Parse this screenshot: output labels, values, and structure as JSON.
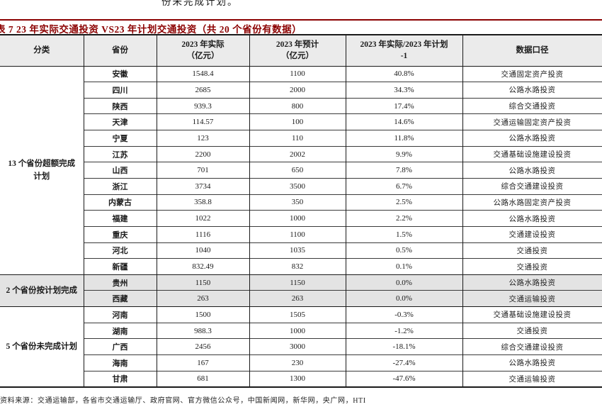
{
  "page": {
    "top_partial_text": "份未完成计划。",
    "title": "表 7 23 年实际交通投资 VS23 年计划交通投资（共 20 个省份有数据）",
    "source": "资料来源：交通运输部，各省市交通运输厅、政府官网、官方微信公众号，中国新闻网，新华网，央广网，HTI"
  },
  "colors": {
    "title_accent": "#8b0000",
    "header_bg": "#ebebeb",
    "shaded_row_bg": "#e3e3e3",
    "border": "#1a1a1a"
  },
  "table": {
    "headers": [
      "分类",
      "省份",
      "2023 年实际\n（亿元）",
      "2023 年预计\n（亿元）",
      "2023 年实际/2023 年计划\n-1",
      "数据口径"
    ],
    "groups": [
      {
        "category": "13 个省份超额完成计划",
        "shaded": false,
        "rows": [
          {
            "province": "安徽",
            "actual_2023": "1548.4",
            "planned_2023": "1100",
            "ratio": "40.8%",
            "caliber": "交通固定资产投资"
          },
          {
            "province": "四川",
            "actual_2023": "2685",
            "planned_2023": "2000",
            "ratio": "34.3%",
            "caliber": "公路水路投资"
          },
          {
            "province": "陕西",
            "actual_2023": "939.3",
            "planned_2023": "800",
            "ratio": "17.4%",
            "caliber": "综合交通投资"
          },
          {
            "province": "天津",
            "actual_2023": "114.57",
            "planned_2023": "100",
            "ratio": "14.6%",
            "caliber": "交通运输固定资产投资"
          },
          {
            "province": "宁夏",
            "actual_2023": "123",
            "planned_2023": "110",
            "ratio": "11.8%",
            "caliber": "公路水路投资"
          },
          {
            "province": "江苏",
            "actual_2023": "2200",
            "planned_2023": "2002",
            "ratio": "9.9%",
            "caliber": "交通基础设施建设投资"
          },
          {
            "province": "山西",
            "actual_2023": "701",
            "planned_2023": "650",
            "ratio": "7.8%",
            "caliber": "公路水路投资"
          },
          {
            "province": "浙江",
            "actual_2023": "3734",
            "planned_2023": "3500",
            "ratio": "6.7%",
            "caliber": "综合交通建设投资"
          },
          {
            "province": "内蒙古",
            "actual_2023": "358.8",
            "planned_2023": "350",
            "ratio": "2.5%",
            "caliber": "公路水路固定资产投资"
          },
          {
            "province": "福建",
            "actual_2023": "1022",
            "planned_2023": "1000",
            "ratio": "2.2%",
            "caliber": "公路水路投资"
          },
          {
            "province": "重庆",
            "actual_2023": "1116",
            "planned_2023": "1100",
            "ratio": "1.5%",
            "caliber": "交通建设投资"
          },
          {
            "province": "河北",
            "actual_2023": "1040",
            "planned_2023": "1035",
            "ratio": "0.5%",
            "caliber": "交通投资"
          },
          {
            "province": "新疆",
            "actual_2023": "832.49",
            "planned_2023": "832",
            "ratio": "0.1%",
            "caliber": "交通投资"
          }
        ]
      },
      {
        "category": "2 个省份按计划完成",
        "shaded": true,
        "rows": [
          {
            "province": "贵州",
            "actual_2023": "1150",
            "planned_2023": "1150",
            "ratio": "0.0%",
            "caliber": "公路水路投资"
          },
          {
            "province": "西藏",
            "actual_2023": "263",
            "planned_2023": "263",
            "ratio": "0.0%",
            "caliber": "交通运输投资"
          }
        ]
      },
      {
        "category": "5 个省份未完成计划",
        "shaded": false,
        "rows": [
          {
            "province": "河南",
            "actual_2023": "1500",
            "planned_2023": "1505",
            "ratio": "-0.3%",
            "caliber": "交通基础设施建设投资"
          },
          {
            "province": "湖南",
            "actual_2023": "988.3",
            "planned_2023": "1000",
            "ratio": "-1.2%",
            "caliber": "交通投资"
          },
          {
            "province": "广西",
            "actual_2023": "2456",
            "planned_2023": "3000",
            "ratio": "-18.1%",
            "caliber": "综合交通建设投资"
          },
          {
            "province": "海南",
            "actual_2023": "167",
            "planned_2023": "230",
            "ratio": "-27.4%",
            "caliber": "公路水路投资"
          },
          {
            "province": "甘肃",
            "actual_2023": "681",
            "planned_2023": "1300",
            "ratio": "-47.6%",
            "caliber": "交通运输投资"
          }
        ]
      }
    ]
  }
}
